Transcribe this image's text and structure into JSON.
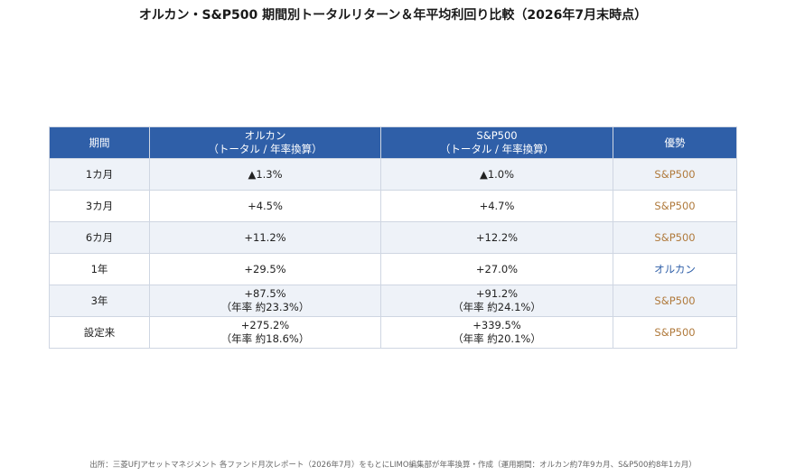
{
  "title": "オルカン・S&P500 期間別トータルリターン＆年平均利回り比較（2026年7月末時点）",
  "table": {
    "headers": {
      "period": "期間",
      "orukan_line1": "オルカン",
      "orukan_line2": "（トータル / 年率換算）",
      "sp500_line1": "S&P500",
      "sp500_line2": "（トータル / 年率換算）",
      "advantage": "優勢"
    },
    "rows": [
      {
        "period": "1カ月",
        "orukan_total": "▲1.3%",
        "orukan_annual": "",
        "sp500_total": "▲1.0%",
        "sp500_annual": "",
        "advantage": "S&P500"
      },
      {
        "period": "3カ月",
        "orukan_total": "+4.5%",
        "orukan_annual": "",
        "sp500_total": "+4.7%",
        "sp500_annual": "",
        "advantage": "S&P500"
      },
      {
        "period": "6カ月",
        "orukan_total": "+11.2%",
        "orukan_annual": "",
        "sp500_total": "+12.2%",
        "sp500_annual": "",
        "advantage": "S&P500"
      },
      {
        "period": "1年",
        "orukan_total": "+29.5%",
        "orukan_annual": "",
        "sp500_total": "+27.0%",
        "sp500_annual": "",
        "advantage": "オルカン"
      },
      {
        "period": "3年",
        "orukan_total": "+87.5%",
        "orukan_annual": "（年率 約23.3%）",
        "sp500_total": "+91.2%",
        "sp500_annual": "（年率 約24.1%）",
        "advantage": "S&P500"
      },
      {
        "period": "設定来",
        "orukan_total": "+275.2%",
        "orukan_annual": "（年率 約18.6%）",
        "sp500_total": "+339.5%",
        "sp500_annual": "（年率 約20.1%）",
        "advantage": "S&P500"
      }
    ]
  },
  "source": "出所：三菱UFJアセットマネジメント 各ファンド月次レポート（2026年7月）をもとにLIMO編集部が年率換算・作成（運用期間：オルカン約7年9カ月、S&P500約8年1カ月）",
  "colors": {
    "header_bg": "#2f5fa8",
    "sp500_text": "#b07a3c",
    "orukan_text": "#2f5fa8",
    "row_alt_bg": "#eef2f8"
  }
}
